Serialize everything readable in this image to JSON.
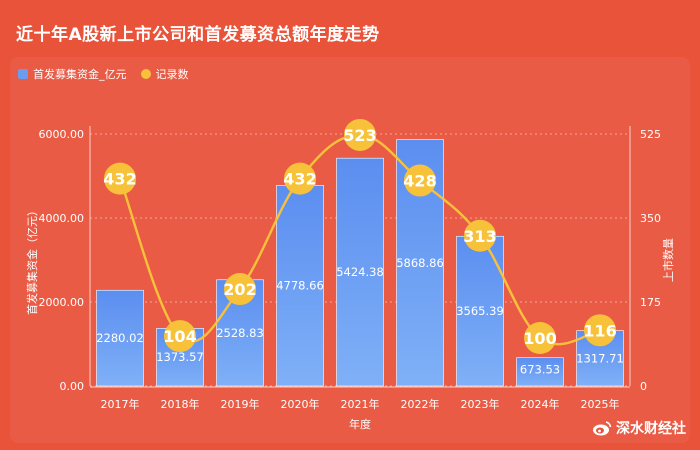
{
  "title": "近十年A股新上市公司和首发募资总额年度走势",
  "legend": {
    "bar_label": "首发募集资金_亿元",
    "line_label": "记录数"
  },
  "watermark": "深水财经社",
  "colors": {
    "background": "#e8533a",
    "bar": "#6a9cf0",
    "line": "#f7c23a",
    "text": "#ffffff"
  },
  "chart_data": {
    "type": "bar",
    "title": "近十年A股新上市公司和首发募资总额年度走势",
    "xlabel": "年度",
    "ylabel": "首发募集资金（亿元）",
    "y2label": "上市数量",
    "categories": [
      "2017年",
      "2018年",
      "2019年",
      "2020年",
      "2021年",
      "2022年",
      "2023年",
      "2024年",
      "2025年"
    ],
    "series": [
      {
        "name": "首发募集资金_亿元",
        "type": "bar",
        "axis": "left",
        "values": [
          2280.02,
          1373.57,
          2528.83,
          4778.66,
          5424.38,
          5868.86,
          3565.39,
          673.53,
          1317.71
        ],
        "labels": [
          "2280.02",
          "1373.57",
          "2528.83",
          "4778.66",
          "5424.38",
          "5868.86",
          "3565.39",
          "673.53",
          "1317.71"
        ]
      },
      {
        "name": "记录数",
        "type": "line",
        "axis": "right",
        "values": [
          432,
          104,
          202,
          432,
          523,
          428,
          313,
          100,
          116
        ]
      }
    ],
    "ylim": [
      0,
      6000
    ],
    "yticks": [
      "0.00",
      "2000.00",
      "4000.00",
      "6000.00"
    ],
    "y2lim": [
      0,
      525
    ],
    "y2ticks": [
      "0",
      "175",
      "350",
      "525"
    ],
    "grid": true,
    "legend_position": "top-left"
  }
}
